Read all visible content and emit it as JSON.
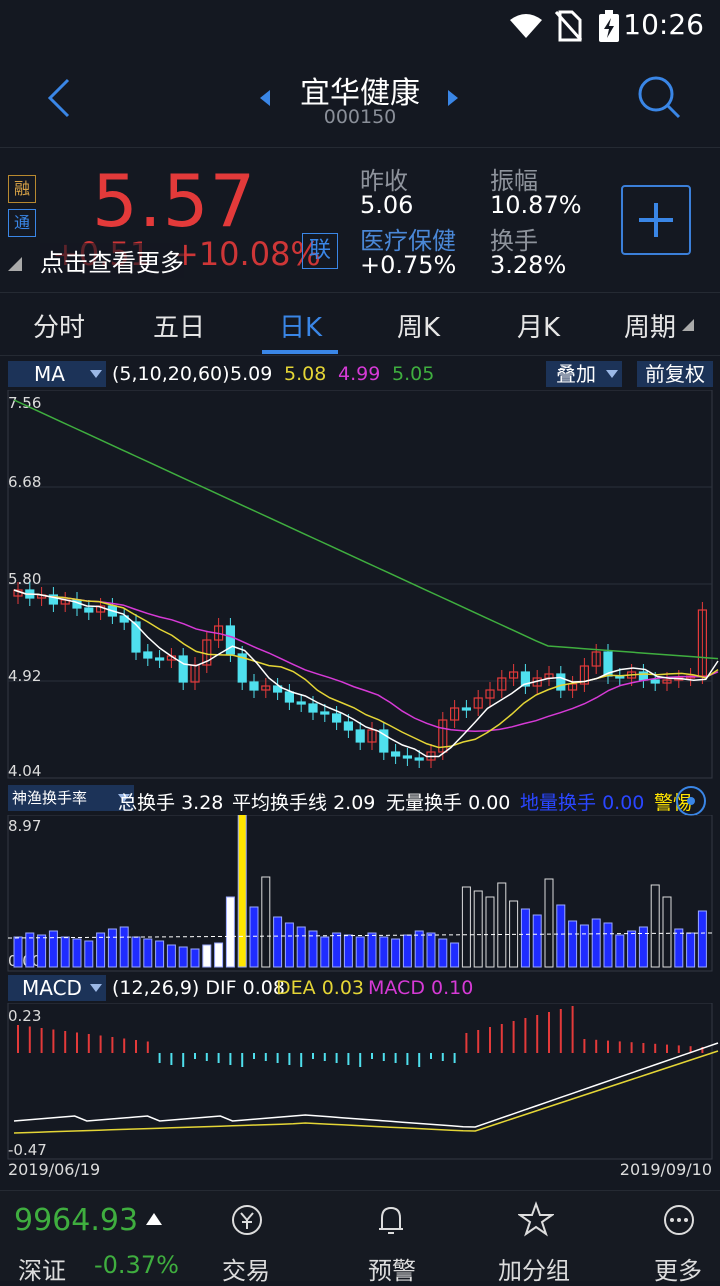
{
  "status": {
    "time": "10:26"
  },
  "header": {
    "title": "宜华健康",
    "code": "000150"
  },
  "quote": {
    "price": "5.57",
    "change": "+0.51",
    "change_pct": "+10.08%",
    "lian_label": "联",
    "tip": "点击查看更多",
    "badge_rong": "融",
    "badge_tong": "通",
    "prev_close_label": "昨收",
    "prev_close": "5.06",
    "amplitude_label": "振幅",
    "amplitude": "10.87%",
    "sector": "医疗保健",
    "sector_change": "+0.75%",
    "turnover_label": "换手",
    "turnover": "3.28%"
  },
  "tabs": [
    "分时",
    "五日",
    "日K",
    "周K",
    "月K",
    "周期"
  ],
  "active_tab": 2,
  "ma_bar": {
    "selector": "MA",
    "params": "(5,10,20,60)",
    "v1": "5.09",
    "v2": "5.08",
    "v3": "4.99",
    "v4": "5.05",
    "overlay_btn": "叠加",
    "adjust_btn": "前复权"
  },
  "price_axis": [
    "7.56",
    "6.68",
    "5.80",
    "4.92",
    "4.04"
  ],
  "turnover_bar": {
    "selector": "神渔换手率",
    "total_label": "总换手",
    "total": "3.28",
    "avg_label": "平均换手线",
    "avg": "2.09",
    "none_label": "无量换手",
    "none": "0.00",
    "low_label": "地量换手",
    "low": "0.00",
    "alert_label": "警惕"
  },
  "turnover_axis": [
    "8.97",
    "0.00"
  ],
  "macd_bar": {
    "selector": "MACD",
    "params": "(12,26,9)",
    "dif_label": "DIF",
    "dif": "0.08",
    "dea_label": "DEA",
    "dea": "0.03",
    "macd_label": "MACD",
    "macd": "0.10"
  },
  "macd_axis": [
    "0.23",
    "-0.47"
  ],
  "dates": {
    "start": "2019/06/19",
    "end": "2019/09/10"
  },
  "bottom": {
    "index_value": "9964.93",
    "index_name": "深证",
    "index_change": "-0.37%",
    "items": [
      "交易",
      "预警",
      "加分组",
      "更多"
    ]
  },
  "colors": {
    "up": "#e33a3a",
    "down": "#4fe0ee",
    "accent": "#3a86e6",
    "ma5": "#ffffff",
    "ma10": "#e4d536",
    "ma20": "#d63ad6",
    "ma60": "#3fae3f"
  }
}
